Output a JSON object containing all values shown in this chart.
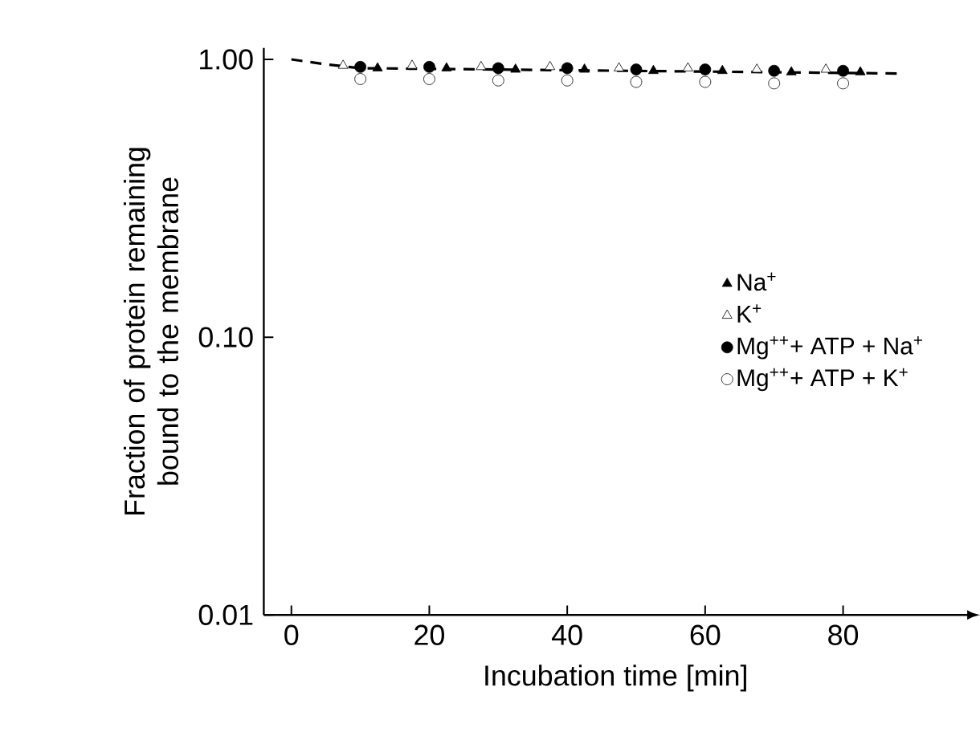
{
  "chart_data": {
    "type": "scatter",
    "xlabel": "Incubation time [min]",
    "ylabel": "Fraction of protein remaining bound to the membrane",
    "x": [
      10,
      20,
      30,
      40,
      50,
      60,
      70,
      80
    ],
    "series": [
      {
        "name": "Na$^{+}$",
        "color": "#000000",
        "marker": "triangle",
        "x": [
          12.5,
          22.5,
          32.5,
          42.5,
          52.5,
          62.5,
          72.5,
          82.5
        ],
        "values": [
          0.93,
          0.93,
          0.92,
          0.92,
          0.91,
          0.91,
          0.9,
          0.9
        ]
      },
      {
        "name": "K$^{+}$",
        "color": "#ffffff",
        "marker": "triangle",
        "x": [
          7.5,
          17.5,
          27.5,
          37.5,
          47.5,
          57.5,
          67.5,
          77.5
        ],
        "values": [
          0.95,
          0.95,
          0.94,
          0.94,
          0.93,
          0.93,
          0.92,
          0.92
        ]
      },
      {
        "name": "Mg$^{++}$+ ATP + Na$^{+}$",
        "color": "#000000",
        "marker": "circle",
        "values": [
          0.94,
          0.94,
          0.93,
          0.93,
          0.92,
          0.92,
          0.91,
          0.91
        ]
      },
      {
        "name": "Mg$^{++}$+ ATP + K$^{+}$",
        "color": "#ffffff",
        "marker": "circle",
        "values": [
          0.85,
          0.85,
          0.84,
          0.84,
          0.83,
          0.83,
          0.82,
          0.82
        ]
      },
      {
        "type": "line",
        "line_style": "dashed",
        "color": "#000000",
        "x": [
          0,
          5,
          10,
          88
        ],
        "values": [
          1.0,
          0.96,
          0.93,
          0.89
        ]
      }
    ],
    "log": "y",
    "xlim": [
      -4,
      98
    ],
    "ylim": [
      0.01,
      1.1
    ],
    "xticks": [
      0,
      20,
      40,
      60,
      80
    ],
    "yticks": [
      {
        "value": 1,
        "label": "1.00"
      },
      {
        "value": 0.1,
        "label": "0.10"
      },
      {
        "value": 0.01,
        "label": "0.01"
      }
    ],
    "grid": false,
    "legend": "right"
  }
}
